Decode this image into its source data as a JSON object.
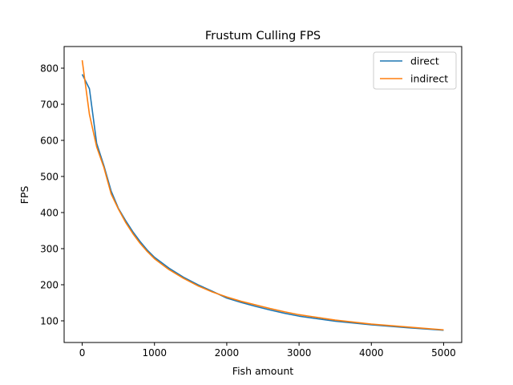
{
  "chart_data": {
    "type": "line",
    "title": "Frustum Culling FPS",
    "xlabel": "Fish amount",
    "ylabel": "FPS",
    "xlim": [
      -250,
      5250
    ],
    "ylim": [
      40,
      860
    ],
    "xticks": [
      0,
      1000,
      2000,
      3000,
      4000,
      5000
    ],
    "yticks": [
      100,
      200,
      300,
      400,
      500,
      600,
      700,
      800
    ],
    "grid": false,
    "legend_position": "top-right",
    "series": [
      {
        "name": "direct",
        "color": "#1f77b4",
        "x": [
          0,
          100,
          200,
          300,
          400,
          500,
          600,
          700,
          800,
          900,
          1000,
          1200,
          1400,
          1600,
          1800,
          2000,
          2200,
          2400,
          2600,
          2800,
          3000,
          3500,
          4000,
          4500,
          5000
        ],
        "y": [
          783,
          743,
          592,
          530,
          460,
          412,
          378,
          347,
          320,
          296,
          276,
          246,
          221,
          200,
          182,
          163,
          151,
          140,
          130,
          121,
          113,
          99,
          89,
          81,
          74
        ]
      },
      {
        "name": "indirect",
        "color": "#ff7f0e",
        "x": [
          0,
          100,
          200,
          300,
          400,
          500,
          600,
          700,
          800,
          900,
          1000,
          1200,
          1400,
          1600,
          1800,
          2000,
          2200,
          2400,
          2600,
          2800,
          3000,
          3500,
          4000,
          4500,
          5000
        ],
        "y": [
          822,
          672,
          582,
          525,
          452,
          410,
          373,
          342,
          315,
          292,
          272,
          242,
          218,
          197,
          180,
          166,
          154,
          144,
          134,
          125,
          117,
          102,
          91,
          83,
          75
        ]
      }
    ]
  }
}
